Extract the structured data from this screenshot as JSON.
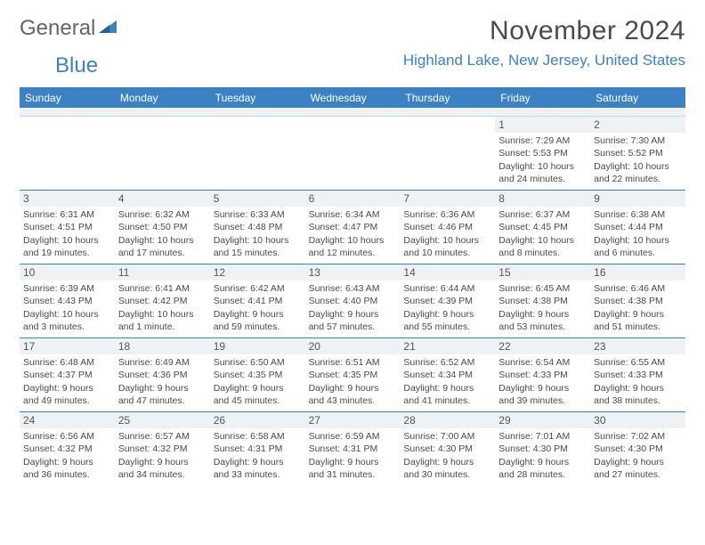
{
  "logo": {
    "part1": "General",
    "part2": "Blue"
  },
  "title": "November 2024",
  "location": "Highland Lake, New Jersey, United States",
  "brand_color": "#3b82c4",
  "header_bg": "#eef2f5",
  "daysOfWeek": [
    "Sunday",
    "Monday",
    "Tuesday",
    "Wednesday",
    "Thursday",
    "Friday",
    "Saturday"
  ],
  "weeks": [
    [
      {
        "n": "",
        "empty": true
      },
      {
        "n": "",
        "empty": true
      },
      {
        "n": "",
        "empty": true
      },
      {
        "n": "",
        "empty": true
      },
      {
        "n": "",
        "empty": true
      },
      {
        "n": "1",
        "sr": "Sunrise: 7:29 AM",
        "ss": "Sunset: 5:53 PM",
        "d1": "Daylight: 10 hours",
        "d2": "and 24 minutes."
      },
      {
        "n": "2",
        "sr": "Sunrise: 7:30 AM",
        "ss": "Sunset: 5:52 PM",
        "d1": "Daylight: 10 hours",
        "d2": "and 22 minutes."
      }
    ],
    [
      {
        "n": "3",
        "sr": "Sunrise: 6:31 AM",
        "ss": "Sunset: 4:51 PM",
        "d1": "Daylight: 10 hours",
        "d2": "and 19 minutes."
      },
      {
        "n": "4",
        "sr": "Sunrise: 6:32 AM",
        "ss": "Sunset: 4:50 PM",
        "d1": "Daylight: 10 hours",
        "d2": "and 17 minutes."
      },
      {
        "n": "5",
        "sr": "Sunrise: 6:33 AM",
        "ss": "Sunset: 4:48 PM",
        "d1": "Daylight: 10 hours",
        "d2": "and 15 minutes."
      },
      {
        "n": "6",
        "sr": "Sunrise: 6:34 AM",
        "ss": "Sunset: 4:47 PM",
        "d1": "Daylight: 10 hours",
        "d2": "and 12 minutes."
      },
      {
        "n": "7",
        "sr": "Sunrise: 6:36 AM",
        "ss": "Sunset: 4:46 PM",
        "d1": "Daylight: 10 hours",
        "d2": "and 10 minutes."
      },
      {
        "n": "8",
        "sr": "Sunrise: 6:37 AM",
        "ss": "Sunset: 4:45 PM",
        "d1": "Daylight: 10 hours",
        "d2": "and 8 minutes."
      },
      {
        "n": "9",
        "sr": "Sunrise: 6:38 AM",
        "ss": "Sunset: 4:44 PM",
        "d1": "Daylight: 10 hours",
        "d2": "and 6 minutes."
      }
    ],
    [
      {
        "n": "10",
        "sr": "Sunrise: 6:39 AM",
        "ss": "Sunset: 4:43 PM",
        "d1": "Daylight: 10 hours",
        "d2": "and 3 minutes."
      },
      {
        "n": "11",
        "sr": "Sunrise: 6:41 AM",
        "ss": "Sunset: 4:42 PM",
        "d1": "Daylight: 10 hours",
        "d2": "and 1 minute."
      },
      {
        "n": "12",
        "sr": "Sunrise: 6:42 AM",
        "ss": "Sunset: 4:41 PM",
        "d1": "Daylight: 9 hours",
        "d2": "and 59 minutes."
      },
      {
        "n": "13",
        "sr": "Sunrise: 6:43 AM",
        "ss": "Sunset: 4:40 PM",
        "d1": "Daylight: 9 hours",
        "d2": "and 57 minutes."
      },
      {
        "n": "14",
        "sr": "Sunrise: 6:44 AM",
        "ss": "Sunset: 4:39 PM",
        "d1": "Daylight: 9 hours",
        "d2": "and 55 minutes."
      },
      {
        "n": "15",
        "sr": "Sunrise: 6:45 AM",
        "ss": "Sunset: 4:38 PM",
        "d1": "Daylight: 9 hours",
        "d2": "and 53 minutes."
      },
      {
        "n": "16",
        "sr": "Sunrise: 6:46 AM",
        "ss": "Sunset: 4:38 PM",
        "d1": "Daylight: 9 hours",
        "d2": "and 51 minutes."
      }
    ],
    [
      {
        "n": "17",
        "sr": "Sunrise: 6:48 AM",
        "ss": "Sunset: 4:37 PM",
        "d1": "Daylight: 9 hours",
        "d2": "and 49 minutes."
      },
      {
        "n": "18",
        "sr": "Sunrise: 6:49 AM",
        "ss": "Sunset: 4:36 PM",
        "d1": "Daylight: 9 hours",
        "d2": "and 47 minutes."
      },
      {
        "n": "19",
        "sr": "Sunrise: 6:50 AM",
        "ss": "Sunset: 4:35 PM",
        "d1": "Daylight: 9 hours",
        "d2": "and 45 minutes."
      },
      {
        "n": "20",
        "sr": "Sunrise: 6:51 AM",
        "ss": "Sunset: 4:35 PM",
        "d1": "Daylight: 9 hours",
        "d2": "and 43 minutes."
      },
      {
        "n": "21",
        "sr": "Sunrise: 6:52 AM",
        "ss": "Sunset: 4:34 PM",
        "d1": "Daylight: 9 hours",
        "d2": "and 41 minutes."
      },
      {
        "n": "22",
        "sr": "Sunrise: 6:54 AM",
        "ss": "Sunset: 4:33 PM",
        "d1": "Daylight: 9 hours",
        "d2": "and 39 minutes."
      },
      {
        "n": "23",
        "sr": "Sunrise: 6:55 AM",
        "ss": "Sunset: 4:33 PM",
        "d1": "Daylight: 9 hours",
        "d2": "and 38 minutes."
      }
    ],
    [
      {
        "n": "24",
        "sr": "Sunrise: 6:56 AM",
        "ss": "Sunset: 4:32 PM",
        "d1": "Daylight: 9 hours",
        "d2": "and 36 minutes."
      },
      {
        "n": "25",
        "sr": "Sunrise: 6:57 AM",
        "ss": "Sunset: 4:32 PM",
        "d1": "Daylight: 9 hours",
        "d2": "and 34 minutes."
      },
      {
        "n": "26",
        "sr": "Sunrise: 6:58 AM",
        "ss": "Sunset: 4:31 PM",
        "d1": "Daylight: 9 hours",
        "d2": "and 33 minutes."
      },
      {
        "n": "27",
        "sr": "Sunrise: 6:59 AM",
        "ss": "Sunset: 4:31 PM",
        "d1": "Daylight: 9 hours",
        "d2": "and 31 minutes."
      },
      {
        "n": "28",
        "sr": "Sunrise: 7:00 AM",
        "ss": "Sunset: 4:30 PM",
        "d1": "Daylight: 9 hours",
        "d2": "and 30 minutes."
      },
      {
        "n": "29",
        "sr": "Sunrise: 7:01 AM",
        "ss": "Sunset: 4:30 PM",
        "d1": "Daylight: 9 hours",
        "d2": "and 28 minutes."
      },
      {
        "n": "30",
        "sr": "Sunrise: 7:02 AM",
        "ss": "Sunset: 4:30 PM",
        "d1": "Daylight: 9 hours",
        "d2": "and 27 minutes."
      }
    ]
  ]
}
